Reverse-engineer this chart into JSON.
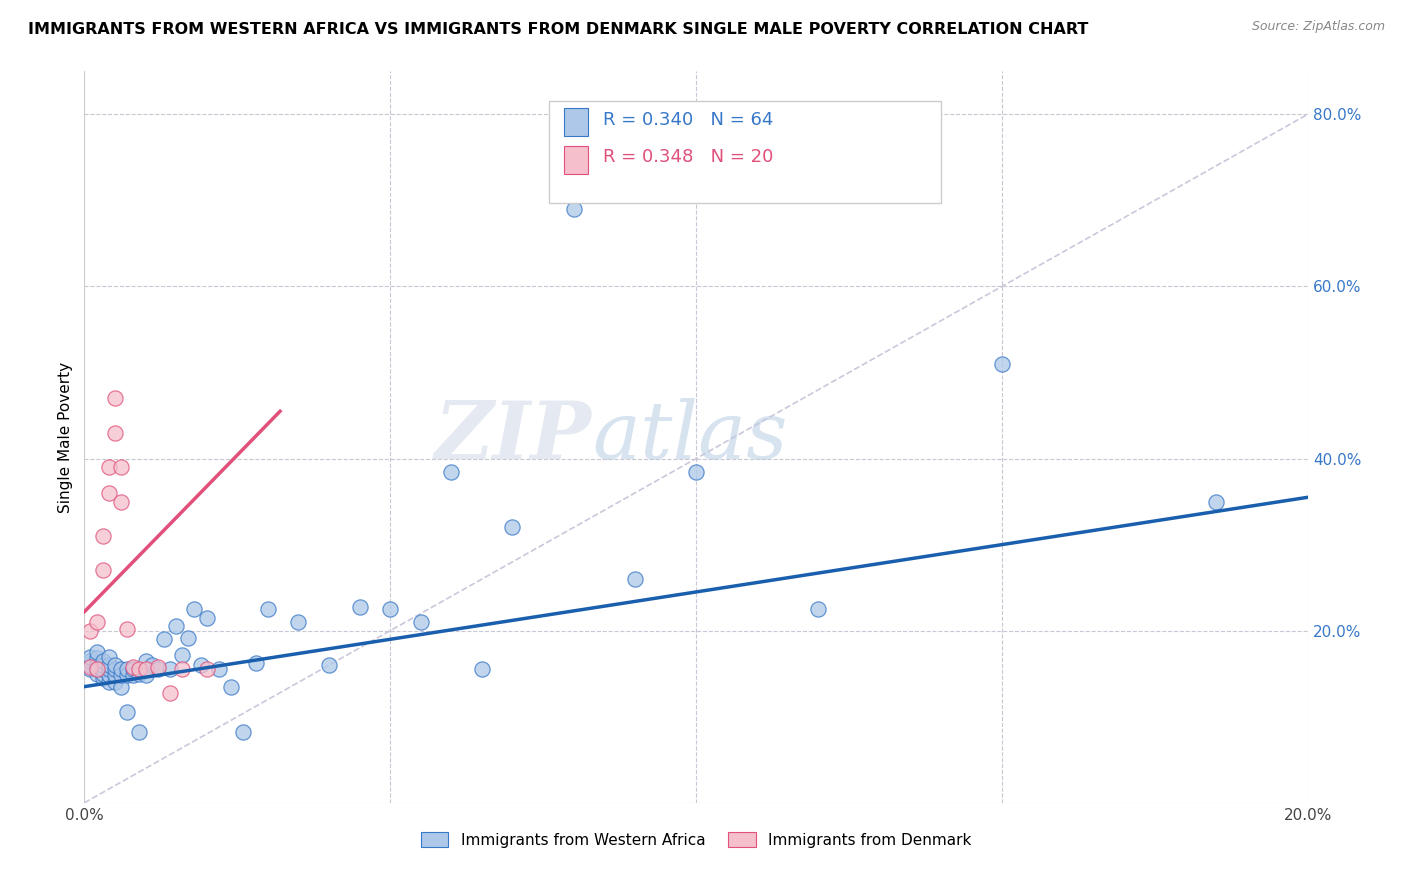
{
  "title": "IMMIGRANTS FROM WESTERN AFRICA VS IMMIGRANTS FROM DENMARK SINGLE MALE POVERTY CORRELATION CHART",
  "source": "Source: ZipAtlas.com",
  "ylabel": "Single Male Poverty",
  "y_ticks": [
    0.0,
    0.2,
    0.4,
    0.6,
    0.8
  ],
  "xlim": [
    0.0,
    0.2
  ],
  "ylim": [
    0.0,
    0.85
  ],
  "blue_R": 0.34,
  "blue_N": 64,
  "pink_R": 0.348,
  "pink_N": 20,
  "blue_color": "#adc8e8",
  "blue_edge_color": "#3878c8",
  "pink_color": "#f5c0cc",
  "pink_edge_color": "#e0507a",
  "diag_color": "#c8c0d8",
  "blue_line_color": "#1a5fad",
  "pink_line_color": "#d03060",
  "watermark_zip": "ZIP",
  "watermark_atlas": "atlas",
  "legend1": "Immigrants from Western Africa",
  "legend2": "Immigrants from Denmark",
  "blue_x": [
    0.001,
    0.001,
    0.001,
    0.001,
    0.002,
    0.002,
    0.002,
    0.002,
    0.002,
    0.003,
    0.003,
    0.003,
    0.003,
    0.003,
    0.004,
    0.004,
    0.004,
    0.004,
    0.004,
    0.005,
    0.005,
    0.005,
    0.005,
    0.006,
    0.006,
    0.006,
    0.007,
    0.007,
    0.007,
    0.008,
    0.008,
    0.009,
    0.009,
    0.01,
    0.01,
    0.011,
    0.012,
    0.013,
    0.014,
    0.015,
    0.016,
    0.017,
    0.018,
    0.019,
    0.02,
    0.022,
    0.024,
    0.026,
    0.028,
    0.03,
    0.035,
    0.04,
    0.045,
    0.05,
    0.055,
    0.06,
    0.065,
    0.07,
    0.08,
    0.09,
    0.1,
    0.12,
    0.15,
    0.185
  ],
  "blue_y": [
    0.155,
    0.16,
    0.165,
    0.17,
    0.15,
    0.155,
    0.16,
    0.168,
    0.175,
    0.145,
    0.15,
    0.155,
    0.16,
    0.165,
    0.14,
    0.148,
    0.155,
    0.16,
    0.17,
    0.14,
    0.148,
    0.155,
    0.16,
    0.135,
    0.148,
    0.155,
    0.105,
    0.148,
    0.155,
    0.148,
    0.155,
    0.082,
    0.15,
    0.148,
    0.165,
    0.16,
    0.155,
    0.19,
    0.155,
    0.205,
    0.172,
    0.192,
    0.225,
    0.16,
    0.215,
    0.155,
    0.135,
    0.082,
    0.162,
    0.225,
    0.21,
    0.16,
    0.228,
    0.225,
    0.21,
    0.385,
    0.155,
    0.32,
    0.69,
    0.26,
    0.385,
    0.225,
    0.51,
    0.35
  ],
  "pink_x": [
    0.001,
    0.001,
    0.002,
    0.002,
    0.003,
    0.003,
    0.004,
    0.004,
    0.005,
    0.005,
    0.006,
    0.006,
    0.007,
    0.008,
    0.009,
    0.01,
    0.012,
    0.014,
    0.016,
    0.02
  ],
  "pink_y": [
    0.158,
    0.2,
    0.155,
    0.21,
    0.27,
    0.31,
    0.36,
    0.39,
    0.43,
    0.47,
    0.35,
    0.39,
    0.202,
    0.158,
    0.156,
    0.156,
    0.158,
    0.128,
    0.155,
    0.155
  ],
  "blue_line_x0": 0.0,
  "blue_line_x1": 0.2,
  "blue_line_y0": 0.135,
  "blue_line_y1": 0.355,
  "pink_line_x0": 0.0,
  "pink_line_x1": 0.032,
  "pink_line_y0": 0.222,
  "pink_line_y1": 0.455
}
